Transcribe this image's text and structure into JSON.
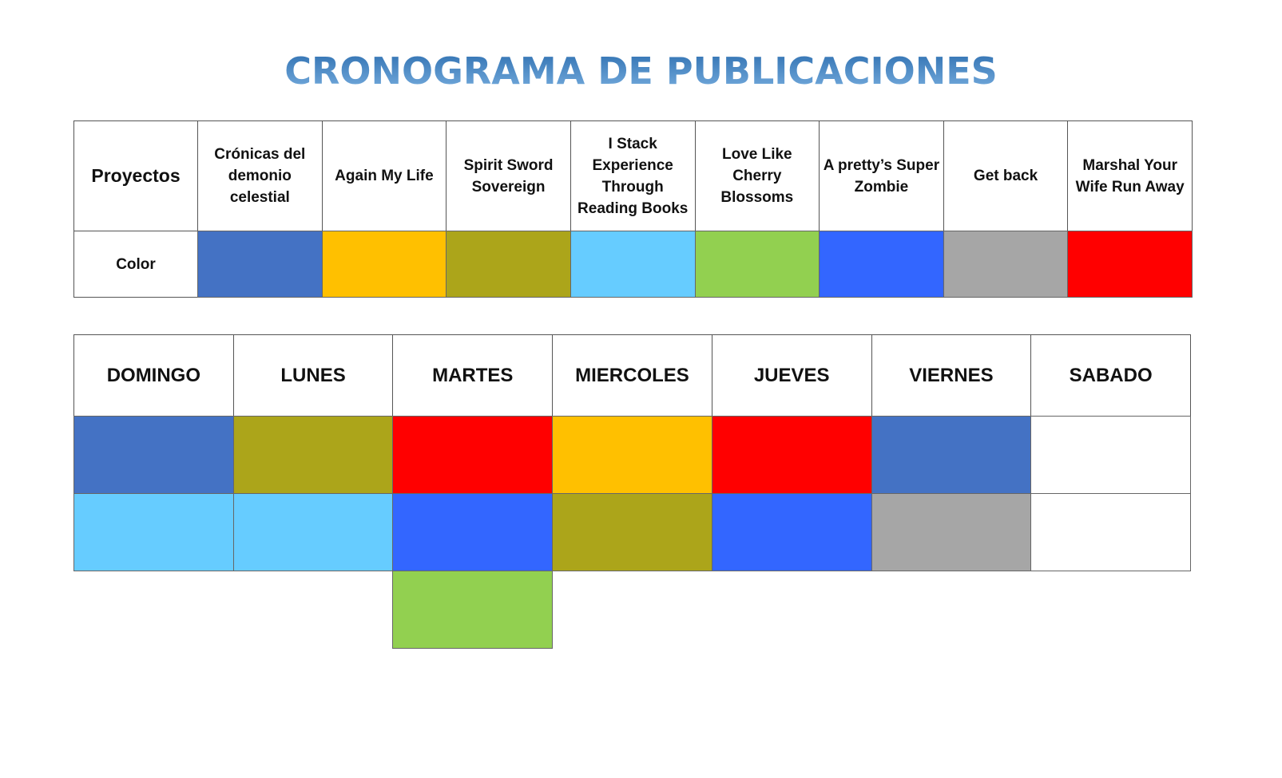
{
  "title": "CRONOGRAMA DE PUBLICACIONES",
  "legend": {
    "header_label": "Proyectos",
    "color_label": "Color",
    "projects": [
      {
        "name": "Crónicas del demonio celestial",
        "color": "#4472c4"
      },
      {
        "name": "Again My Life",
        "color": "#ffc000"
      },
      {
        "name": "Spirit Sword Sovereign",
        "color": "#aca51a"
      },
      {
        "name": "I Stack Experience Through Reading Books",
        "color": "#66ccff"
      },
      {
        "name": "Love Like Cherry Blossoms",
        "color": "#92d050"
      },
      {
        "name": "A pretty’s Super Zombie",
        "color": "#3366ff"
      },
      {
        "name": "Get back",
        "color": "#a6a6a6"
      },
      {
        "name": "Marshal Your Wife Run Away",
        "color": "#ff0000"
      }
    ]
  },
  "schedule": {
    "days": [
      {
        "name": "DOMINGO",
        "projects": [
          0,
          3
        ]
      },
      {
        "name": "LUNES",
        "projects": [
          2,
          3
        ]
      },
      {
        "name": "MARTES",
        "projects": [
          7,
          5,
          4
        ]
      },
      {
        "name": "MIERCOLES",
        "projects": [
          1,
          2
        ]
      },
      {
        "name": "JUEVES",
        "projects": [
          7,
          5
        ]
      },
      {
        "name": "VIERNES",
        "projects": [
          0,
          6
        ]
      },
      {
        "name": "SABADO",
        "projects": [
          null,
          null
        ]
      }
    ]
  }
}
